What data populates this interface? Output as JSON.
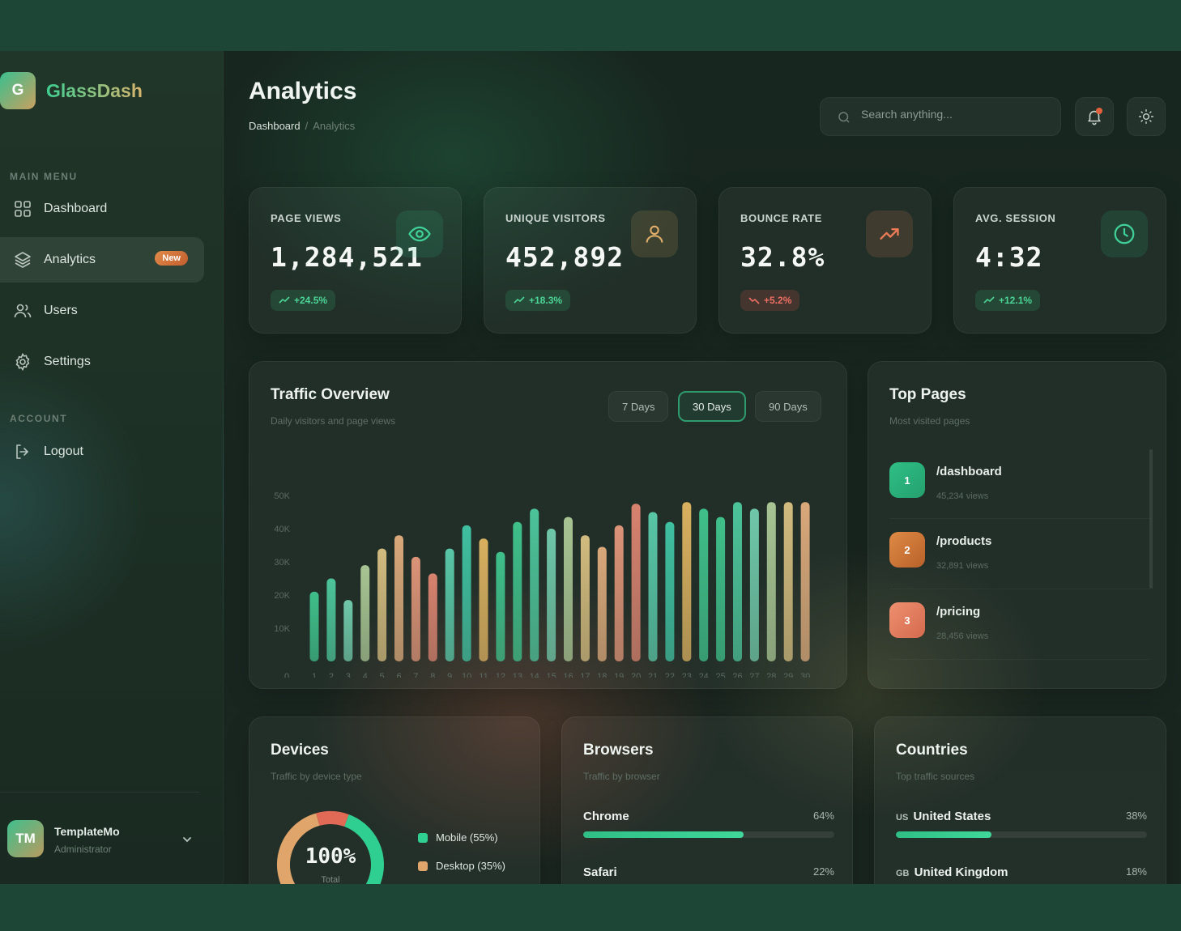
{
  "brand": {
    "logo_letter": "G",
    "name": "GlassDash"
  },
  "sidebar": {
    "main_menu_title": "MAIN MENU",
    "items": [
      {
        "label": "Dashboard",
        "icon": "grid-icon"
      },
      {
        "label": "Analytics",
        "icon": "layers-icon",
        "badge": "New",
        "active": true
      },
      {
        "label": "Users",
        "icon": "users-icon"
      },
      {
        "label": "Settings",
        "icon": "gear-icon"
      }
    ],
    "account_title": "ACCOUNT",
    "logout_label": "Logout",
    "user": {
      "initials": "TM",
      "name": "TemplateMo",
      "role": "Administrator"
    }
  },
  "header": {
    "title": "Analytics",
    "breadcrumb": [
      "Dashboard",
      "Analytics"
    ],
    "breadcrumb_sep": "/",
    "search_placeholder": "Search anything..."
  },
  "stats": [
    {
      "label": "PAGE VIEWS",
      "value": "1,284,521",
      "change": "+24.5%",
      "trend": "up",
      "icon": "eye-icon",
      "accent": "#2fbf86"
    },
    {
      "label": "UNIQUE VISITORS",
      "value": "452,892",
      "change": "+18.3%",
      "trend": "up",
      "icon": "user-icon",
      "accent": "#d4a25f"
    },
    {
      "label": "BOUNCE RATE",
      "value": "32.8%",
      "change": "+5.2%",
      "trend": "down",
      "icon": "trend-up-icon",
      "accent": "#e07a55"
    },
    {
      "label": "AVG. SESSION",
      "value": "4:32",
      "change": "+12.1%",
      "trend": "up",
      "icon": "clock-icon",
      "accent": "#2fbf86"
    }
  ],
  "traffic": {
    "title": "Traffic Overview",
    "subtitle": "Daily visitors and page views",
    "ranges": [
      "7 Days",
      "30 Days",
      "90 Days"
    ],
    "active_range": "30 Days"
  },
  "chart_data": {
    "type": "bar",
    "categories": [
      "1",
      "2",
      "3",
      "4",
      "5",
      "6",
      "7",
      "8",
      "9",
      "10",
      "11",
      "12",
      "13",
      "14",
      "15",
      "16",
      "17",
      "18",
      "19",
      "20",
      "21",
      "22",
      "23",
      "24",
      "25",
      "26",
      "27",
      "28",
      "29",
      "30"
    ],
    "values": [
      21000,
      25000,
      18500,
      29000,
      34000,
      38000,
      31500,
      26500,
      34000,
      41000,
      37000,
      33000,
      42000,
      46000,
      40000,
      43500,
      38000,
      34500,
      41000,
      47500,
      45000,
      42000,
      48000,
      46000,
      43500,
      48000,
      46000,
      48000,
      48000,
      48000
    ],
    "y_ticks": [
      "0",
      "10K",
      "20K",
      "30K",
      "40K",
      "50K"
    ],
    "ylim": [
      0,
      50000
    ],
    "colors": [
      "#3fbf8a",
      "#4cc39a",
      "#6fc7a9",
      "#a8c493",
      "#d2bb7e",
      "#d9a87a",
      "#dc9377",
      "#d8826f",
      "#58c6a6",
      "#3fc0a0",
      "#d9b05f",
      "#3fbf8a"
    ],
    "grid": false
  },
  "top_pages": {
    "title": "Top Pages",
    "subtitle": "Most visited pages",
    "items": [
      {
        "rank": "1",
        "path": "/dashboard",
        "views": "45,234 views",
        "color": "#2fbf86"
      },
      {
        "rank": "2",
        "path": "/products",
        "views": "32,891 views",
        "color": "#d97a3a"
      },
      {
        "rank": "3",
        "path": "/pricing",
        "views": "28,456 views",
        "color": "#e6815f"
      }
    ]
  },
  "devices": {
    "title": "Devices",
    "subtitle": "Traffic by device type",
    "donut_label": "100%",
    "donut_sublabel": "Total",
    "legend": [
      {
        "label": "Mobile (55%)",
        "percent": 55,
        "color": "#2fcf92"
      },
      {
        "label": "Desktop (35%)",
        "percent": 35,
        "color": "#e0a56a"
      },
      {
        "label": "",
        "percent": 10,
        "color": "#e06a55"
      }
    ]
  },
  "browsers": {
    "title": "Browsers",
    "subtitle": "Traffic by browser",
    "items": [
      {
        "name": "Chrome",
        "percent_label": "64%",
        "percent": 64
      },
      {
        "name": "Safari",
        "percent_label": "22%",
        "percent": 22
      }
    ]
  },
  "countries": {
    "title": "Countries",
    "subtitle": "Top traffic sources",
    "items": [
      {
        "code": "US",
        "name": "United States",
        "percent_label": "38%",
        "percent": 38
      },
      {
        "code": "GB",
        "name": "United Kingdom",
        "percent_label": "18%",
        "percent": 18
      }
    ]
  }
}
